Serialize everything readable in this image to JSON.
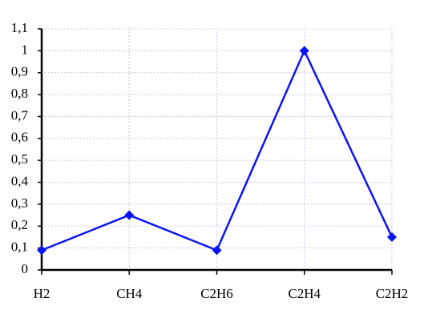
{
  "chart_data": {
    "type": "line",
    "categories": [
      "H2",
      "CH4",
      "C2H6",
      "C2H4",
      "C2H2"
    ],
    "values": [
      0.09,
      0.25,
      0.09,
      1.0,
      0.15
    ],
    "color": "#0a14f0",
    "ylim": [
      0,
      1.1
    ],
    "yticks": [
      0,
      {
        "value": 0.1,
        "label": "0,1"
      },
      {
        "value": 0.2,
        "label": "0,2"
      },
      {
        "value": 0.3,
        "label": "0,3"
      },
      {
        "value": 0.4,
        "label": "0,4"
      },
      {
        "value": 0.5,
        "label": "0,5"
      },
      {
        "value": 0.6,
        "label": "0,6"
      },
      {
        "value": 0.7,
        "label": "0,7"
      },
      {
        "value": 0.8,
        "label": "0,8"
      },
      {
        "value": 0.9,
        "label": "0,9"
      },
      1,
      {
        "value": 1.1,
        "label": "1,1"
      }
    ],
    "grid": true
  }
}
